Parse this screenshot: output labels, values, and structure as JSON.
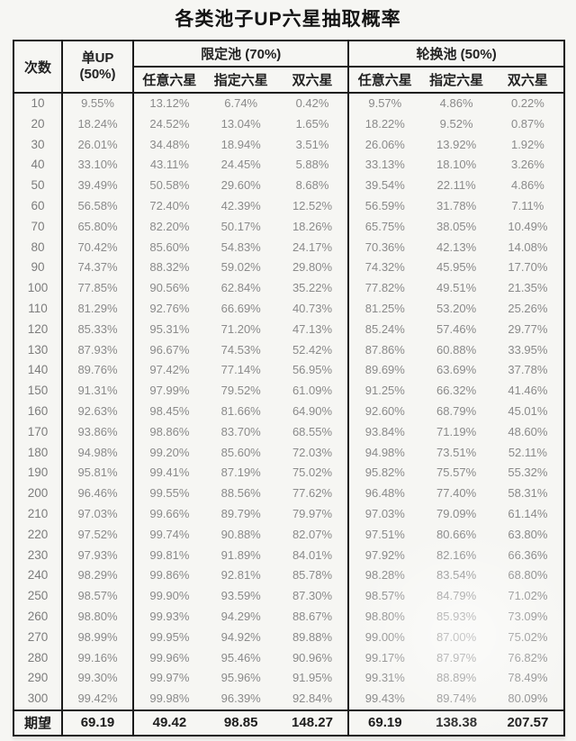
{
  "title": "各类池子UP六星抽取概率",
  "header": {
    "draws": "次数",
    "single_up_line1": "单UP",
    "single_up_line2": "(50%)",
    "limited_group": "限定池 (70%)",
    "rotation_group": "轮换池 (50%)",
    "subcols": [
      "任意六星",
      "指定六星",
      "双六星"
    ]
  },
  "footer_label": "期望",
  "colors": {
    "border": "#1a1a1a",
    "header_text": "#222222",
    "data_text": "#8a8a8a",
    "footer_text": "#1c1c1c",
    "background": "#f6f6f3"
  },
  "chart_data": {
    "type": "table",
    "title": "各类池子UP六星抽取概率",
    "columns": [
      "次数",
      "单UP (50%)",
      "限定池 (70%) 任意六星",
      "限定池 (70%) 指定六星",
      "限定池 (70%) 双六星",
      "轮换池 (50%) 任意六星",
      "轮换池 (50%) 指定六星",
      "轮换池 (50%) 双六星"
    ],
    "row_labels": [
      "10",
      "20",
      "30",
      "40",
      "50",
      "60",
      "70",
      "80",
      "90",
      "100",
      "110",
      "120",
      "130",
      "140",
      "150",
      "160",
      "170",
      "180",
      "190",
      "200",
      "210",
      "220",
      "230",
      "240",
      "250",
      "260",
      "270",
      "280",
      "290",
      "300"
    ],
    "rows": [
      [
        "9.55%",
        "13.12%",
        "6.74%",
        "0.42%",
        "9.57%",
        "4.86%",
        "0.22%"
      ],
      [
        "18.24%",
        "24.52%",
        "13.04%",
        "1.65%",
        "18.22%",
        "9.52%",
        "0.87%"
      ],
      [
        "26.01%",
        "34.48%",
        "18.94%",
        "3.51%",
        "26.06%",
        "13.92%",
        "1.92%"
      ],
      [
        "33.10%",
        "43.11%",
        "24.45%",
        "5.88%",
        "33.13%",
        "18.10%",
        "3.26%"
      ],
      [
        "39.49%",
        "50.58%",
        "29.60%",
        "8.68%",
        "39.54%",
        "22.11%",
        "4.86%"
      ],
      [
        "56.58%",
        "72.40%",
        "42.39%",
        "12.52%",
        "56.59%",
        "31.78%",
        "7.11%"
      ],
      [
        "65.80%",
        "82.20%",
        "50.17%",
        "18.26%",
        "65.75%",
        "38.05%",
        "10.49%"
      ],
      [
        "70.42%",
        "85.60%",
        "54.83%",
        "24.17%",
        "70.36%",
        "42.13%",
        "14.08%"
      ],
      [
        "74.37%",
        "88.32%",
        "59.02%",
        "29.80%",
        "74.32%",
        "45.95%",
        "17.70%"
      ],
      [
        "77.85%",
        "90.56%",
        "62.84%",
        "35.22%",
        "77.82%",
        "49.51%",
        "21.35%"
      ],
      [
        "81.29%",
        "92.76%",
        "66.69%",
        "40.73%",
        "81.25%",
        "53.20%",
        "25.26%"
      ],
      [
        "85.33%",
        "95.31%",
        "71.20%",
        "47.13%",
        "85.24%",
        "57.46%",
        "29.77%"
      ],
      [
        "87.93%",
        "96.67%",
        "74.53%",
        "52.42%",
        "87.86%",
        "60.88%",
        "33.95%"
      ],
      [
        "89.76%",
        "97.42%",
        "77.14%",
        "56.95%",
        "89.69%",
        "63.69%",
        "37.78%"
      ],
      [
        "91.31%",
        "97.99%",
        "79.52%",
        "61.09%",
        "91.25%",
        "66.32%",
        "41.46%"
      ],
      [
        "92.63%",
        "98.45%",
        "81.66%",
        "64.90%",
        "92.60%",
        "68.79%",
        "45.01%"
      ],
      [
        "93.86%",
        "98.86%",
        "83.70%",
        "68.55%",
        "93.84%",
        "71.19%",
        "48.60%"
      ],
      [
        "94.98%",
        "99.20%",
        "85.60%",
        "72.03%",
        "94.98%",
        "73.51%",
        "52.11%"
      ],
      [
        "95.81%",
        "99.41%",
        "87.19%",
        "75.02%",
        "95.82%",
        "75.57%",
        "55.32%"
      ],
      [
        "96.46%",
        "99.55%",
        "88.56%",
        "77.62%",
        "96.48%",
        "77.40%",
        "58.31%"
      ],
      [
        "97.03%",
        "99.66%",
        "89.79%",
        "79.97%",
        "97.03%",
        "79.09%",
        "61.14%"
      ],
      [
        "97.52%",
        "99.74%",
        "90.88%",
        "82.07%",
        "97.51%",
        "80.66%",
        "63.80%"
      ],
      [
        "97.93%",
        "99.81%",
        "91.89%",
        "84.01%",
        "97.92%",
        "82.16%",
        "66.36%"
      ],
      [
        "98.29%",
        "99.86%",
        "92.81%",
        "85.78%",
        "98.28%",
        "83.54%",
        "68.80%"
      ],
      [
        "98.57%",
        "99.90%",
        "93.59%",
        "87.30%",
        "98.57%",
        "84.79%",
        "71.02%"
      ],
      [
        "98.80%",
        "99.93%",
        "94.29%",
        "88.67%",
        "98.80%",
        "85.93%",
        "73.09%"
      ],
      [
        "98.99%",
        "99.95%",
        "94.92%",
        "89.88%",
        "99.00%",
        "87.00%",
        "75.02%"
      ],
      [
        "99.16%",
        "99.96%",
        "95.46%",
        "90.96%",
        "99.17%",
        "87.97%",
        "76.82%"
      ],
      [
        "99.30%",
        "99.97%",
        "95.96%",
        "91.95%",
        "99.31%",
        "88.89%",
        "78.49%"
      ],
      [
        "99.42%",
        "99.98%",
        "96.39%",
        "92.84%",
        "99.43%",
        "89.74%",
        "80.09%"
      ]
    ],
    "expectation": [
      "69.19",
      "49.42",
      "98.85",
      "148.27",
      "69.19",
      "138.38",
      "207.57"
    ]
  }
}
